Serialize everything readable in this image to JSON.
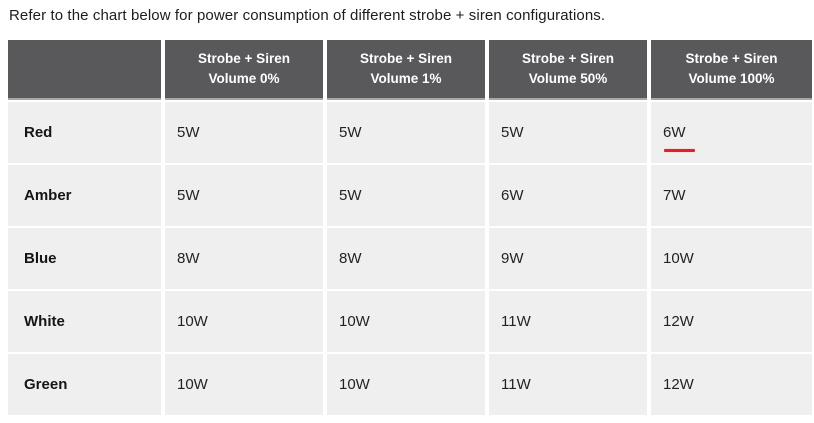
{
  "page": {
    "intro_text": "Refer to the chart below for power consumption of different strobe + siren configurations."
  },
  "table": {
    "corner_label": "",
    "column_headers": [
      {
        "line1": "Strobe + Siren",
        "line2": "Volume 0%"
      },
      {
        "line1": "Strobe + Siren",
        "line2": "Volume 1%"
      },
      {
        "line1": "Strobe + Siren",
        "line2": "Volume 50%"
      },
      {
        "line1": "Strobe + Siren",
        "line2": "Volume 100%"
      }
    ],
    "rows": [
      {
        "label": "Red",
        "values": [
          "5W",
          "5W",
          "5W",
          "6W"
        ],
        "highlight": {
          "column": 3,
          "style": "red-underline"
        }
      },
      {
        "label": "Amber",
        "values": [
          "5W",
          "5W",
          "6W",
          "7W"
        ]
      },
      {
        "label": "Blue",
        "values": [
          "8W",
          "8W",
          "9W",
          "10W"
        ]
      },
      {
        "label": "White",
        "values": [
          "10W",
          "10W",
          "11W",
          "12W"
        ]
      },
      {
        "label": "Green",
        "values": [
          "10W",
          "10W",
          "11W",
          "12W"
        ]
      }
    ]
  },
  "colors": {
    "header_bg": "#59595b",
    "header_text": "#ffffff",
    "cell_bg": "#efeff0",
    "body_text": "#232323",
    "highlight_underline": "#e02127"
  },
  "chart_data": {
    "type": "table",
    "title": "Refer to the chart below for power consumption of different strobe + siren configurations.",
    "categories": [
      "Strobe + Siren Volume 0%",
      "Strobe + Siren Volume 1%",
      "Strobe + Siren Volume 50%",
      "Strobe + Siren Volume 100%"
    ],
    "series": [
      {
        "name": "Red",
        "values": [
          "5W",
          "5W",
          "5W",
          "6W"
        ]
      },
      {
        "name": "Amber",
        "values": [
          "5W",
          "5W",
          "6W",
          "7W"
        ]
      },
      {
        "name": "Blue",
        "values": [
          "8W",
          "8W",
          "9W",
          "10W"
        ]
      },
      {
        "name": "White",
        "values": [
          "10W",
          "10W",
          "11W",
          "12W"
        ]
      },
      {
        "name": "Green",
        "values": [
          "10W",
          "10W",
          "11W",
          "12W"
        ]
      }
    ],
    "unit": "W",
    "annotations": [
      "Red underline highlight under the 6W value in row Red, column Strobe + Siren Volume 100%"
    ]
  }
}
